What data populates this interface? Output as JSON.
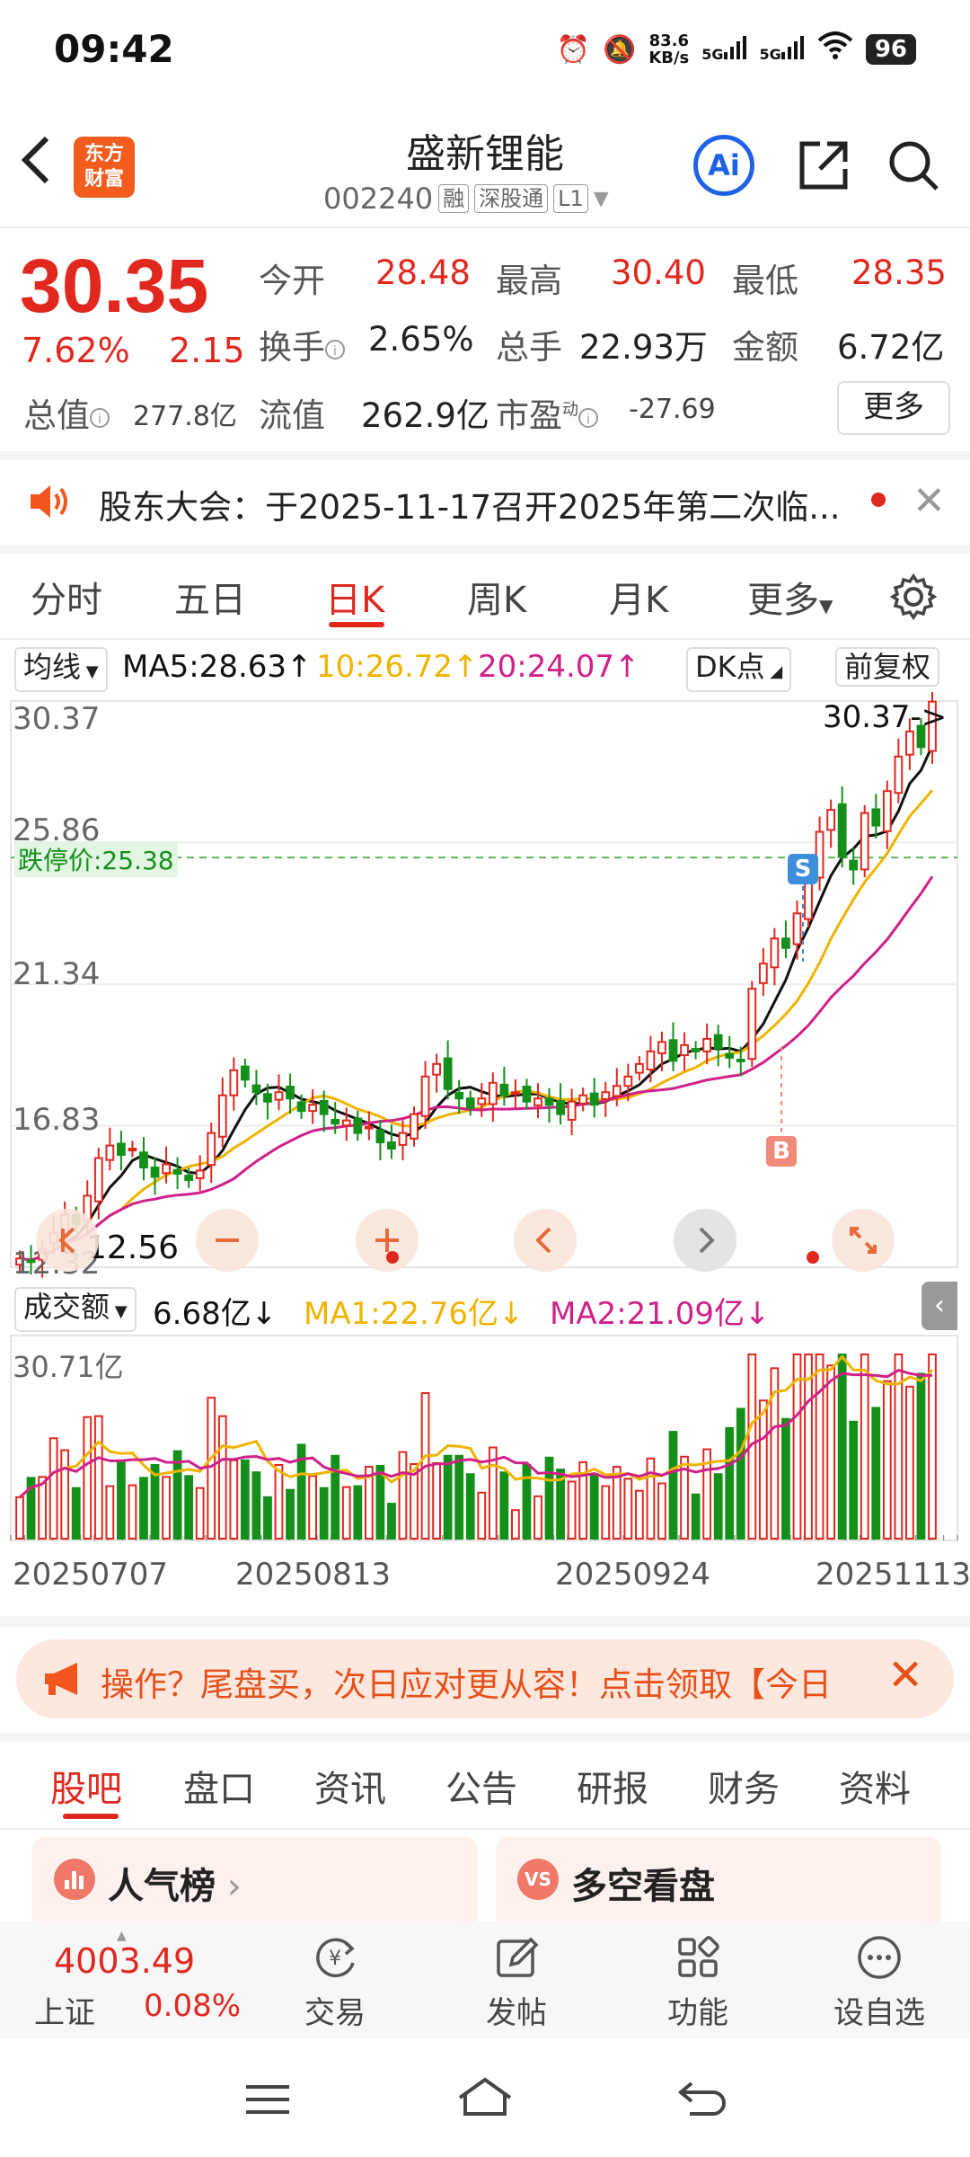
{
  "status_bar": {
    "time": "09:42",
    "net_speed_value": "83.6",
    "net_speed_unit": "KB/s",
    "sig1": "5G",
    "sig2": "5G",
    "battery": "96"
  },
  "header": {
    "logo_line1": "东方",
    "logo_line2": "财富",
    "stock_name": "盛新锂能",
    "stock_code": "002240",
    "tag_margin": "融",
    "tag_connect": "深股通",
    "tag_level": "L1",
    "ai_label": "Ai"
  },
  "quote": {
    "price": "30.35",
    "change_pct": "7.62%",
    "change_abs": "2.15",
    "open_label": "今开",
    "open": "28.48",
    "high_label": "最高",
    "high": "30.40",
    "low_label": "最低",
    "low": "28.35",
    "turnover_label": "换手",
    "turnover": "2.65%",
    "volume_label": "总手",
    "volume": "22.93万",
    "amount_label": "金额",
    "amount": "6.72亿",
    "mktcap_label": "总值",
    "mktcap": "277.8亿",
    "float_label": "流值",
    "float_cap": "262.9亿",
    "pe_label": "市盈",
    "pe_sup": "动",
    "pe": "-27.69",
    "more": "更多"
  },
  "notice": {
    "text": "股东大会：于2025-11-17召开2025年第二次临..."
  },
  "chart_tabs": {
    "items": [
      "分时",
      "五日",
      "日K",
      "周K",
      "月K",
      "更多"
    ],
    "active": "日K"
  },
  "ma_legend": {
    "select": "均线",
    "ma5": "MA5:28.63↑",
    "ma10": "10:26.72↑",
    "ma20": "20:24.07↑",
    "dk": "DK点",
    "adjust": "前复权"
  },
  "colors": {
    "red": "#e0281f",
    "green": "#14901a",
    "ma5": "#111111",
    "ma10": "#f0b400",
    "ma20": "#d0208a"
  },
  "chart_data": [
    {
      "type": "candlestick",
      "y_ticks": [
        "30.37",
        "25.86",
        "21.34",
        "16.83",
        "12.32"
      ],
      "ylim": [
        12.32,
        30.37
      ],
      "last_price_marker": "30.37->",
      "low_marker": "12.56",
      "limit_down_label": "跌停价:25.38",
      "limit_down": 25.38,
      "signals": [
        {
          "label": "S"
        },
        {
          "label": "B"
        }
      ],
      "close_series": [
        12.6,
        12.5,
        12.9,
        13.4,
        14.0,
        13.7,
        14.6,
        15.8,
        16.2,
        15.9,
        16.1,
        15.5,
        15.2,
        15.6,
        15.3,
        15.1,
        15.4,
        16.6,
        17.8,
        18.6,
        18.3,
        17.9,
        17.6,
        17.9,
        17.7,
        17.3,
        17.5,
        17.2,
        16.9,
        17.0,
        16.6,
        16.8,
        16.3,
        16.1,
        16.6,
        17.2,
        18.4,
        18.8,
        18.0,
        17.7,
        17.4,
        17.7,
        18.2,
        17.8,
        17.9,
        17.6,
        17.7,
        17.5,
        17.2,
        17.6,
        17.8,
        17.5,
        17.9,
        18.1,
        18.4,
        18.8,
        19.2,
        19.5,
        18.9,
        19.4,
        19.2,
        19.6,
        19.3,
        19.0,
        18.9,
        21.2,
        22.0,
        22.8,
        22.5,
        23.6,
        24.8,
        26.2,
        26.9,
        25.4,
        25.0,
        26.8,
        26.4,
        27.5,
        28.6,
        29.4,
        28.9,
        30.35
      ],
      "volume_axis_top": "30.71亿",
      "x_dates": [
        "20250707",
        "20250813",
        "20250924",
        "20251113"
      ]
    }
  ],
  "volume_legend": {
    "select": "成交额",
    "value": "6.68亿↓",
    "ma1": "MA1:22.76亿↓",
    "ma2": "MA2:21.09亿↓"
  },
  "promo": {
    "text": "操作？尾盘买，次日应对更从容！点击领取【今日"
  },
  "section_tabs": {
    "items": [
      "股吧",
      "盘口",
      "资讯",
      "公告",
      "研报",
      "财务",
      "资料"
    ],
    "active": "股吧"
  },
  "cards": {
    "left": "人气榜",
    "left_badge": "",
    "right": "多空看盘",
    "right_badge": "VS"
  },
  "bottom_nav": {
    "index_value": "4003.49",
    "index_name": "上证",
    "index_change": "0.08%",
    "trade": "交易",
    "post": "发帖",
    "func": "功能",
    "watch": "设自选"
  }
}
